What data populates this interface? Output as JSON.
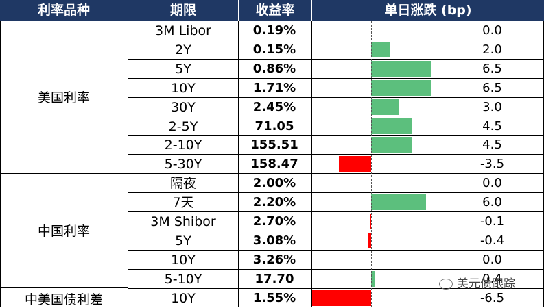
{
  "header": {
    "category": "利率品种",
    "term": "期限",
    "yield": "收益率",
    "change": "单日涨跌 (bp)"
  },
  "groups": [
    {
      "label": "美国利率"
    },
    {
      "label": "中国利率"
    },
    {
      "label": "中美国债利差"
    }
  ],
  "rows": [
    {
      "term": "3M Libor",
      "value": "0.19%",
      "change_label": "0.0",
      "change": 0.0
    },
    {
      "term": "2Y",
      "value": "0.15%",
      "change_label": "2.0",
      "change": 2.0
    },
    {
      "term": "5Y",
      "value": "0.86%",
      "change_label": "6.5",
      "change": 6.5
    },
    {
      "term": "10Y",
      "value": "1.71%",
      "change_label": "6.5",
      "change": 6.5
    },
    {
      "term": "30Y",
      "value": "2.45%",
      "change_label": "3.0",
      "change": 3.0
    },
    {
      "term": "2-5Y",
      "value": "71.05",
      "change_label": "4.5",
      "change": 4.5
    },
    {
      "term": "2-10Y",
      "value": "155.51",
      "change_label": "4.5",
      "change": 4.5
    },
    {
      "term": "5-30Y",
      "value": "158.47",
      "change_label": "-3.5",
      "change": -3.5
    },
    {
      "term": "隔夜",
      "value": "2.00%",
      "change_label": "0.0",
      "change": 0.0
    },
    {
      "term": "7天",
      "value": "2.20%",
      "change_label": "6.0",
      "change": 6.0
    },
    {
      "term": "3M Shibor",
      "value": "2.70%",
      "change_label": "-0.1",
      "change": -0.1
    },
    {
      "term": "5Y",
      "value": "3.08%",
      "change_label": "-0.4",
      "change": -0.4
    },
    {
      "term": "10Y",
      "value": "3.26%",
      "change_label": "0.0",
      "change": 0.0
    },
    {
      "term": "5-10Y",
      "value": "17.70",
      "change_label": "0.4",
      "change": 0.4
    },
    {
      "term": "10Y",
      "value": "1.55%",
      "change_label": "-6.5",
      "change": -6.5
    }
  ],
  "colors": {
    "header_bg": "#1f3864",
    "positive": "#5cbf7d",
    "negative": "#ff0000"
  },
  "watermark": {
    "text": "美元债跟踪",
    "icon": "wechat-icon"
  }
}
